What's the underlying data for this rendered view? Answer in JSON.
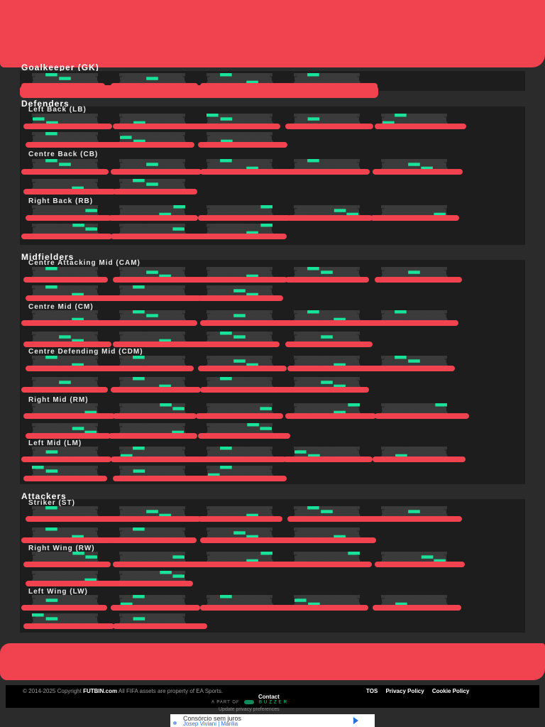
{
  "colors": {
    "page_bg": "#2b2b2b",
    "card_bg": "#1d1d1d",
    "pitch": "#3b3b3b",
    "hot": "#19e29a",
    "redaction": "#f1434f"
  },
  "sections": [
    {
      "title": "Goalkeeper (GK)"
    },
    {
      "title": "Defenders",
      "subs": [
        "Left Back (LB)",
        "Centre Back (CB)",
        "Right Back (RB)"
      ]
    },
    {
      "title": "Midfielders",
      "subs": [
        "Centre Attacking Mid (CAM)",
        "Centre Mid (CM)",
        "Centre Defending Mid (CDM)",
        "Right Mid (RM)",
        "Left Mid (LM)"
      ]
    },
    {
      "title": "Attackers",
      "subs": [
        "Striker (ST)",
        "Right Wing (RW)",
        "Left Wing (LW)"
      ]
    }
  ],
  "footer": {
    "copyright_prefix": "© 2014-2025 Copyright",
    "brand": "FUTBIN.com",
    "copyright_suffix": "All FIFA assets are property of EA Sports.",
    "links": [
      "TOS",
      "Privacy Policy",
      "Cookie Policy"
    ],
    "contact": "Contact",
    "part_of": "A PART OF",
    "network": "BUZZER",
    "privacy_update": "Update privacy preferences"
  },
  "ad": {
    "title": "Consórcio sem juros",
    "subtitle": "Josep Viviani | Marilia"
  }
}
